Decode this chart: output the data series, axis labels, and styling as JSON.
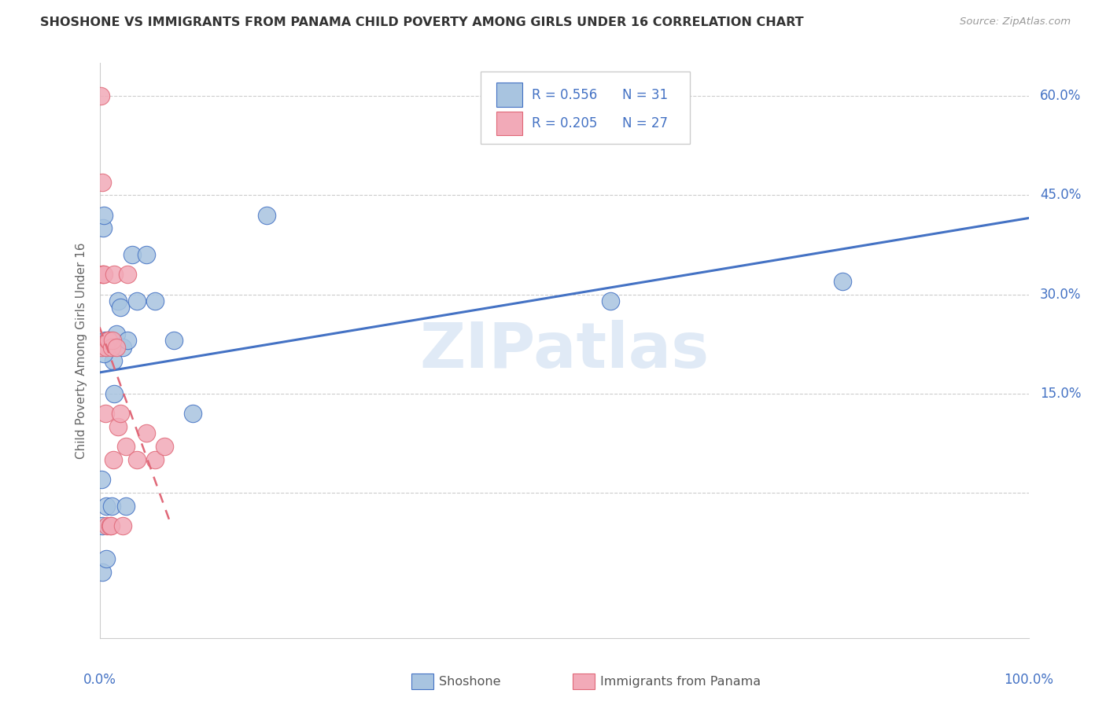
{
  "title": "SHOSHONE VS IMMIGRANTS FROM PANAMA CHILD POVERTY AMONG GIRLS UNDER 16 CORRELATION CHART",
  "source": "Source: ZipAtlas.com",
  "ylabel": "Child Poverty Among Girls Under 16",
  "xlim": [
    0,
    1.0
  ],
  "ylim": [
    -0.22,
    0.65
  ],
  "yticks": [
    0.0,
    0.15,
    0.3,
    0.45,
    0.6
  ],
  "ytick_labels": [
    "",
    "15.0%",
    "30.0%",
    "45.0%",
    "60.0%"
  ],
  "legend_r1": "R = 0.556",
  "legend_n1": "N = 31",
  "legend_r2": "R = 0.205",
  "legend_n2": "N = 27",
  "color_blue": "#a8c4e0",
  "color_pink": "#f2aab8",
  "line_color_blue": "#4472c4",
  "line_color_pink": "#e06878",
  "watermark": "ZIPatlas",
  "shoshone_x": [
    0.002,
    0.003,
    0.004,
    0.005,
    0.006,
    0.007,
    0.008,
    0.009,
    0.01,
    0.012,
    0.013,
    0.015,
    0.016,
    0.018,
    0.02,
    0.022,
    0.025,
    0.028,
    0.03,
    0.035,
    0.04,
    0.05,
    0.06,
    0.08,
    0.1,
    0.18,
    0.55,
    0.8,
    0.003,
    0.005,
    0.007
  ],
  "shoshone_y": [
    0.02,
    -0.05,
    0.4,
    0.42,
    0.23,
    -0.02,
    0.22,
    0.23,
    0.22,
    0.23,
    -0.02,
    0.2,
    0.15,
    0.24,
    0.29,
    0.28,
    0.22,
    -0.02,
    0.23,
    0.36,
    0.29,
    0.36,
    0.29,
    0.23,
    0.12,
    0.42,
    0.29,
    0.32,
    -0.12,
    0.21,
    -0.1
  ],
  "panama_x": [
    0.001,
    0.002,
    0.003,
    0.003,
    0.004,
    0.005,
    0.006,
    0.007,
    0.008,
    0.009,
    0.01,
    0.011,
    0.012,
    0.013,
    0.014,
    0.015,
    0.016,
    0.018,
    0.02,
    0.022,
    0.025,
    0.028,
    0.03,
    0.04,
    0.05,
    0.06,
    0.07
  ],
  "panama_y": [
    0.6,
    0.22,
    0.47,
    0.33,
    0.33,
    0.33,
    0.12,
    0.22,
    -0.05,
    0.23,
    0.23,
    -0.05,
    -0.05,
    0.22,
    0.23,
    0.05,
    0.33,
    0.22,
    0.1,
    0.12,
    -0.05,
    0.07,
    0.33,
    0.05,
    0.09,
    0.05,
    0.07
  ]
}
